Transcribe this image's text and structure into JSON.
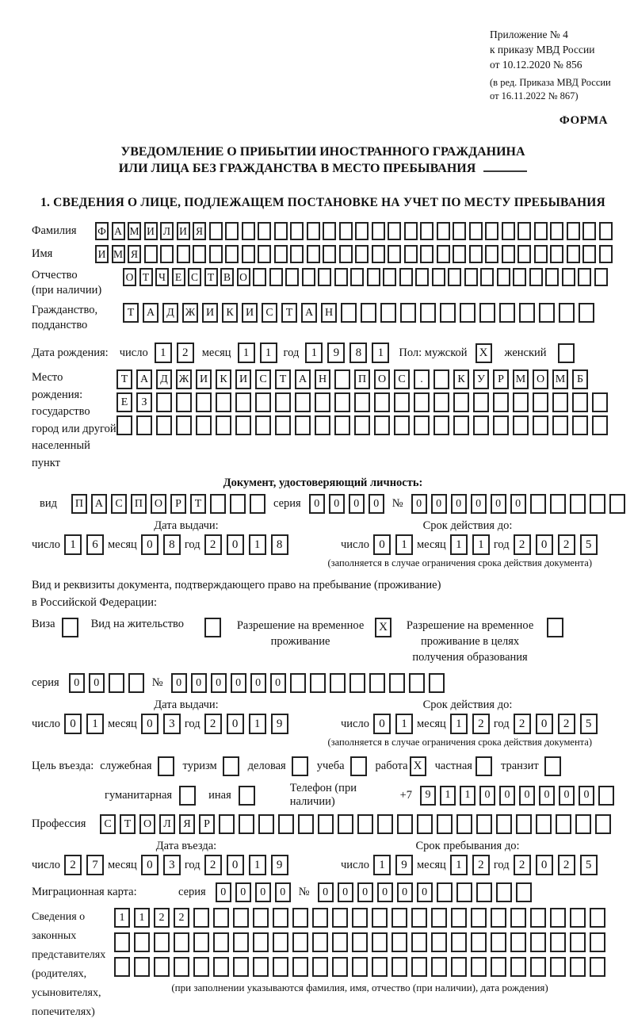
{
  "colors": {
    "ink": "#111111",
    "box_border": "#222222",
    "paper": "#ffffff"
  },
  "header": {
    "appendix_lines": [
      "Приложение № 4",
      "к приказу МВД России",
      "от 10.12.2020 № 856"
    ],
    "amendment_lines": [
      "(в ред. Приказа МВД России",
      "от 16.11.2022 № 867)"
    ],
    "form_label": "ФОРМА"
  },
  "title": {
    "line1": "УВЕДОМЛЕНИЕ О ПРИБЫТИИ ИНОСТРАННОГО ГРАЖДАНИНА",
    "line2": "ИЛИ ЛИЦА БЕЗ ГРАЖДАНСТВА В МЕСТО ПРЕБЫВАНИЯ"
  },
  "section1_heading": "1. СВЕДЕНИЯ О ЛИЦЕ, ПОДЛЕЖАЩЕМ ПОСТАНОВКЕ НА УЧЕТ ПО МЕСТУ ПРЕБЫВАНИЯ",
  "words": {
    "day": "число",
    "month": "месяц",
    "year": "год",
    "series": "серия",
    "number": "№"
  },
  "person": {
    "surname_label": "Фамилия",
    "surname": {
      "value": "ФАМИЛИЯ",
      "count": 32
    },
    "name_label": "Имя",
    "name": {
      "value": "ИМЯ",
      "count": 32
    },
    "patronymic_label1": "Отчество",
    "patronymic_label2": "(при наличии)",
    "patronymic": {
      "value": "ОТЧЕСТВО",
      "count": 30
    },
    "citizenship_label1": "Гражданство,",
    "citizenship_label2": "подданство",
    "citizenship": {
      "value": "ТАДЖИКИСТАН",
      "count": 24
    },
    "birth_label": "Дата рождения:",
    "birth_day": {
      "value": "12",
      "count": 2
    },
    "birth_month": {
      "value": "11",
      "count": 2
    },
    "birth_year": {
      "value": "1981",
      "count": 4
    },
    "sex_label": "Пол: мужской",
    "sex_male": {
      "value": "X",
      "count": 1
    },
    "sex_female_label": "женский",
    "sex_female": {
      "value": "",
      "count": 1
    },
    "birthplace_labels": [
      "Место рождения:",
      "государство",
      "город или другой",
      "населенный пункт"
    ],
    "birthplace_rows": [
      {
        "value": "ТАДЖИКИСТАН ПОС. КУРМОМБ",
        "count": 24
      },
      {
        "value": "ЕЗ",
        "count": 25
      },
      {
        "value": "",
        "count": 25
      }
    ]
  },
  "id_doc": {
    "heading": "Документ, удостоверяющий личность:",
    "type_label": "вид",
    "type": {
      "value": "ПАСПОРТ",
      "count": 10
    },
    "series": {
      "value": "0000",
      "count": 4
    },
    "number": {
      "value": "000000",
      "count": 11
    },
    "issue_heading": "Дата выдачи:",
    "valid_heading": "Срок действия до:",
    "issue_day": {
      "value": "16",
      "count": 2
    },
    "issue_month": {
      "value": "08",
      "count": 2
    },
    "issue_year": {
      "value": "2018",
      "count": 4
    },
    "valid_day": {
      "value": "01",
      "count": 2
    },
    "valid_month": {
      "value": "11",
      "count": 2
    },
    "valid_year": {
      "value": "2025",
      "count": 4
    },
    "restriction_note": "(заполняется в случае ограничения срока действия документа)"
  },
  "stay_doc": {
    "intro_line1": "Вид и реквизиты документа, подтверждающего право на пребывание (проживание)",
    "intro_line2": "в Российской Федерации:",
    "types": [
      {
        "label": "Виза",
        "box": {
          "value": "",
          "count": 1
        }
      },
      {
        "label": "Вид на жительство",
        "box": {
          "value": "",
          "count": 1
        }
      },
      {
        "label": "Разрешение на временное проживание",
        "box": {
          "value": "X",
          "count": 1
        }
      },
      {
        "label": "Разрешение на временное проживание в целях получения образования",
        "box": {
          "value": "",
          "count": 1
        }
      }
    ],
    "series": {
      "value": "00",
      "count": 4
    },
    "number": {
      "value": "000000",
      "count": 14
    },
    "issue_heading": "Дата выдачи:",
    "valid_heading": "Срок действия до:",
    "issue_day": {
      "value": "01",
      "count": 2
    },
    "issue_month": {
      "value": "03",
      "count": 2
    },
    "issue_year": {
      "value": "2019",
      "count": 4
    },
    "valid_day": {
      "value": "01",
      "count": 2
    },
    "valid_month": {
      "value": "12",
      "count": 2
    },
    "valid_year": {
      "value": "2025",
      "count": 4
    },
    "restriction_note": "(заполняется в случае ограничения срока действия документа)"
  },
  "entry": {
    "purpose_label": "Цель въезда:",
    "purposes": [
      {
        "label": "служебная",
        "box": {
          "value": "",
          "count": 1
        }
      },
      {
        "label": "туризм",
        "box": {
          "value": "",
          "count": 1
        }
      },
      {
        "label": "деловая",
        "box": {
          "value": "",
          "count": 1
        }
      },
      {
        "label": "учеба",
        "box": {
          "value": "",
          "count": 1
        }
      },
      {
        "label": "работа",
        "box": {
          "value": "X",
          "count": 1
        }
      },
      {
        "label": "частная",
        "box": {
          "value": "",
          "count": 1
        }
      },
      {
        "label": "транзит",
        "box": {
          "value": "",
          "count": 1
        }
      }
    ],
    "purposes_row2": [
      {
        "label": "гуманитарная",
        "box": {
          "value": "",
          "count": 1
        }
      },
      {
        "label": "иная",
        "box": {
          "value": "",
          "count": 1
        }
      }
    ],
    "phone_label": "Телефон (при наличии)",
    "phone_prefix": "+7",
    "phone": {
      "value": "911000000",
      "count": 10
    },
    "profession_label": "Профессия",
    "profession": {
      "value": "СТОЛЯР",
      "count": 26
    },
    "entry_heading": "Дата въезда:",
    "stay_heading": "Срок пребывания до:",
    "entry_day": {
      "value": "27",
      "count": 2
    },
    "entry_month": {
      "value": "03",
      "count": 2
    },
    "entry_year": {
      "value": "2019",
      "count": 4
    },
    "stay_day": {
      "value": "19",
      "count": 2
    },
    "stay_month": {
      "value": "12",
      "count": 2
    },
    "stay_year": {
      "value": "2025",
      "count": 4
    }
  },
  "migration_card": {
    "label": "Миграционная карта:",
    "series": {
      "value": "0000",
      "count": 4
    },
    "number": {
      "value": "000000",
      "count": 11
    }
  },
  "representatives": {
    "label_lines": [
      "Сведения о",
      "законных",
      "представителях",
      "(родителях,",
      "усыновителях,",
      "попечителях)"
    ],
    "rows": [
      {
        "value": "1122",
        "count": 25
      },
      {
        "value": "",
        "count": 25
      },
      {
        "value": "",
        "count": 25
      }
    ],
    "note": "(при заполнении указываются фамилия, имя, отчество (при наличии), дата рождения)"
  }
}
